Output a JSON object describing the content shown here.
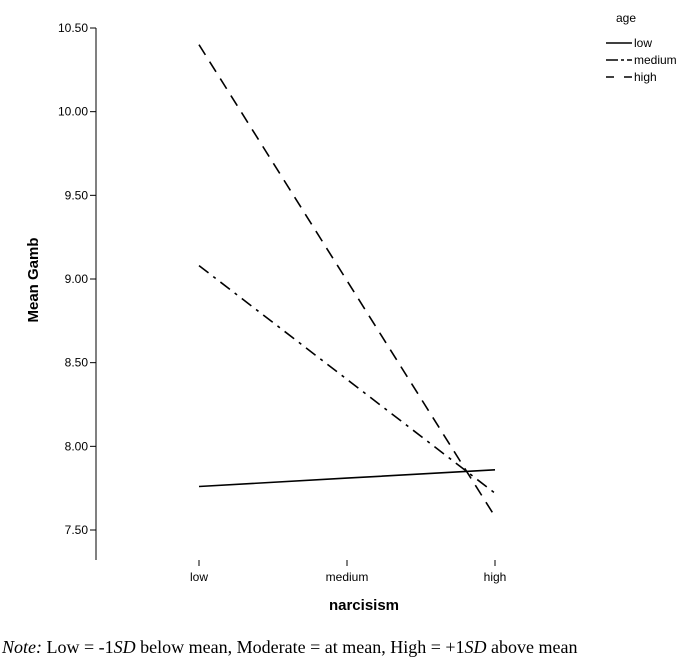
{
  "chart_data": {
    "type": "line",
    "xlabel": "narcisism",
    "ylabel": "Mean Gamb",
    "categories": [
      "low",
      "medium",
      "high"
    ],
    "y_ticks": [
      "7.50",
      "8.00",
      "8.50",
      "9.00",
      "9.50",
      "10.00",
      "10.50"
    ],
    "ylim": [
      7.4,
      10.6
    ],
    "grid": false,
    "legend": {
      "title": "age",
      "placement": "top-right",
      "entries": [
        "low",
        "medium",
        "high"
      ]
    },
    "series": [
      {
        "name": "low",
        "style": "solid",
        "values": [
          7.76,
          7.81,
          7.86
        ]
      },
      {
        "name": "medium",
        "style": "dash-dot",
        "values": [
          9.08,
          8.4,
          7.72
        ]
      },
      {
        "name": "high",
        "style": "dashed",
        "values": [
          10.4,
          8.99,
          7.58
        ]
      }
    ]
  },
  "note": {
    "label": "Note:",
    "parts": [
      {
        "text": " Low = -1",
        "italic": false
      },
      {
        "text": "SD",
        "italic": true
      },
      {
        "text": " below mean, Moderate = at mean, High = +1",
        "italic": false
      },
      {
        "text": "SD",
        "italic": true
      },
      {
        "text": " above mean",
        "italic": false
      }
    ]
  },
  "colors": {
    "line": "#000000",
    "background": "#ffffff"
  }
}
